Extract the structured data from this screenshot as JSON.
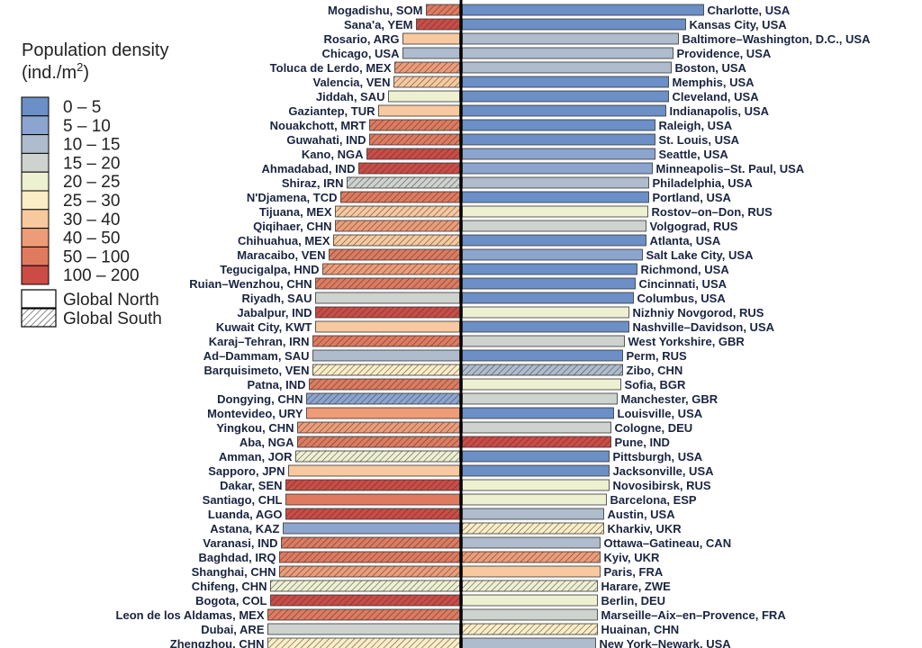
{
  "chart_data": {
    "type": "bar",
    "orientation": "horizontal-diverging",
    "legend": {
      "title_line1": "Population density",
      "title_line2_prefix": "(ind./m",
      "title_line2_sup": "2",
      "title_line2_suffix": ")",
      "bins": [
        {
          "label": "0 – 5",
          "color": "#6b8fc6"
        },
        {
          "label": "5 – 10",
          "color": "#8ba5cf"
        },
        {
          "label": "10 – 15",
          "color": "#aebccd"
        },
        {
          "label": "15 – 20",
          "color": "#cfd3cf"
        },
        {
          "label": "20 – 25",
          "color": "#eef0d2"
        },
        {
          "label": "25 – 30",
          "color": "#fbedc6"
        },
        {
          "label": "30 – 40",
          "color": "#f8c99e"
        },
        {
          "label": "40 – 50",
          "color": "#ee9c78"
        },
        {
          "label": "50 – 100",
          "color": "#e07a5f"
        },
        {
          "label": "100 – 200",
          "color": "#cd4b45"
        }
      ],
      "region_keys": [
        {
          "label": "Global North",
          "pattern": "solid"
        },
        {
          "label": "Global South",
          "pattern": "hatched"
        }
      ]
    },
    "left_series": [
      {
        "city": "Mogadishu, SOM",
        "bar": 37,
        "bin": 8,
        "south": true
      },
      {
        "city": "Sana'a, YEM",
        "bar": 48,
        "bin": 9,
        "south": true
      },
      {
        "city": "Rosario, ARG",
        "bar": 63,
        "bin": 6,
        "south": false
      },
      {
        "city": "Chicago, USA",
        "bar": 63,
        "bin": 2,
        "south": false
      },
      {
        "city": "Toluca de Lerdo, MEX",
        "bar": 72,
        "bin": 7,
        "south": true
      },
      {
        "city": "Valencia, VEN",
        "bar": 73,
        "bin": 6,
        "south": true
      },
      {
        "city": "Jiddah, SAU",
        "bar": 79,
        "bin": 4,
        "south": false
      },
      {
        "city": "Gaziantep, TUR",
        "bar": 90,
        "bin": 6,
        "south": false
      },
      {
        "city": "Nouakchott, MRT",
        "bar": 100,
        "bin": 8,
        "south": true
      },
      {
        "city": "Guwahati, IND",
        "bar": 100,
        "bin": 8,
        "south": true
      },
      {
        "city": "Kano, NGA",
        "bar": 103,
        "bin": 9,
        "south": true
      },
      {
        "city": "Ahmadabad, IND",
        "bar": 112,
        "bin": 9,
        "south": true
      },
      {
        "city": "Shiraz, IRN",
        "bar": 125,
        "bin": 3,
        "south": true
      },
      {
        "city": "N'Djamena, TCD",
        "bar": 132,
        "bin": 8,
        "south": true
      },
      {
        "city": "Tijuana, MEX",
        "bar": 138,
        "bin": 6,
        "south": true
      },
      {
        "city": "Qiqihaer, CHN",
        "bar": 138,
        "bin": 7,
        "south": true
      },
      {
        "city": "Chihuahua, MEX",
        "bar": 140,
        "bin": 6,
        "south": true
      },
      {
        "city": "Maracaibo, VEN",
        "bar": 145,
        "bin": 8,
        "south": true
      },
      {
        "city": "Tegucigalpa, HND",
        "bar": 152,
        "bin": 7,
        "south": true
      },
      {
        "city": "Ruian–Wenzhou, CHN",
        "bar": 160,
        "bin": 8,
        "south": true
      },
      {
        "city": "Riyadh, SAU",
        "bar": 160,
        "bin": 3,
        "south": false
      },
      {
        "city": "Jabalpur, IND",
        "bar": 160,
        "bin": 9,
        "south": true
      },
      {
        "city": "Kuwait City, KWT",
        "bar": 160,
        "bin": 6,
        "south": false
      },
      {
        "city": "Karaj–Tehran, IRN",
        "bar": 163,
        "bin": 8,
        "south": true
      },
      {
        "city": "Ad–Dammam, SAU",
        "bar": 163,
        "bin": 2,
        "south": false
      },
      {
        "city": "Barquisimeto, VEN",
        "bar": 163,
        "bin": 5,
        "south": true
      },
      {
        "city": "Patna, IND",
        "bar": 167,
        "bin": 8,
        "south": true
      },
      {
        "city": "Dongying, CHN",
        "bar": 170,
        "bin": 1,
        "south": true
      },
      {
        "city": "Montevideo, URY",
        "bar": 170,
        "bin": 7,
        "south": false
      },
      {
        "city": "Yingkou, CHN",
        "bar": 180,
        "bin": 7,
        "south": true
      },
      {
        "city": "Aba, NGA",
        "bar": 180,
        "bin": 8,
        "south": true
      },
      {
        "city": "Amman, JOR",
        "bar": 182,
        "bin": 4,
        "south": true
      },
      {
        "city": "Sapporo, JPN",
        "bar": 190,
        "bin": 6,
        "south": false
      },
      {
        "city": "Dakar, SEN",
        "bar": 193,
        "bin": 9,
        "south": true
      },
      {
        "city": "Santiago, CHL",
        "bar": 193,
        "bin": 8,
        "south": false
      },
      {
        "city": "Luanda, AGO",
        "bar": 193,
        "bin": 9,
        "south": true
      },
      {
        "city": "Astana, KAZ",
        "bar": 196,
        "bin": 1,
        "south": false
      },
      {
        "city": "Varanasi, IND",
        "bar": 198,
        "bin": 8,
        "south": true
      },
      {
        "city": "Baghdad, IRQ",
        "bar": 200,
        "bin": 8,
        "south": true
      },
      {
        "city": "Shanghai, CHN",
        "bar": 200,
        "bin": 7,
        "south": true
      },
      {
        "city": "Chifeng, CHN",
        "bar": 210,
        "bin": 4,
        "south": true
      },
      {
        "city": "Bogota, COL",
        "bar": 210,
        "bin": 9,
        "south": true
      },
      {
        "city": "Leon de los Aldamas, MEX",
        "bar": 213,
        "bin": 8,
        "south": true
      },
      {
        "city": "Dubai, ARE",
        "bar": 213,
        "bin": 3,
        "south": false
      },
      {
        "city": "Zhengzhou, CHN",
        "bar": 213,
        "bin": 5,
        "south": true
      }
    ],
    "right_series": [
      {
        "city": "Charlotte, USA",
        "bar": 268,
        "bin": 0,
        "south": false
      },
      {
        "city": "Kansas City, USA",
        "bar": 248,
        "bin": 0,
        "south": false
      },
      {
        "city": "Baltimore–Washington, D.C., USA",
        "bar": 240,
        "bin": 2,
        "south": false
      },
      {
        "city": "Providence, USA",
        "bar": 234,
        "bin": 2,
        "south": false
      },
      {
        "city": "Boston, USA",
        "bar": 232,
        "bin": 2,
        "south": false
      },
      {
        "city": "Memphis, USA",
        "bar": 229,
        "bin": 0,
        "south": false
      },
      {
        "city": "Cleveland, USA",
        "bar": 229,
        "bin": 0,
        "south": false
      },
      {
        "city": "Indianapolis, USA",
        "bar": 226,
        "bin": 0,
        "south": false
      },
      {
        "city": "Raleigh, USA",
        "bar": 214,
        "bin": 0,
        "south": false
      },
      {
        "city": "St. Louis, USA",
        "bar": 214,
        "bin": 0,
        "south": false
      },
      {
        "city": "Seattle, USA",
        "bar": 214,
        "bin": 1,
        "south": false
      },
      {
        "city": "Minneapolis–St. Paul, USA",
        "bar": 211,
        "bin": 1,
        "south": false
      },
      {
        "city": "Philadelphia, USA",
        "bar": 207,
        "bin": 2,
        "south": false
      },
      {
        "city": "Portland, USA",
        "bar": 207,
        "bin": 0,
        "south": false
      },
      {
        "city": "Rostov–on–Don, RUS",
        "bar": 206,
        "bin": 4,
        "south": false
      },
      {
        "city": "Volgograd, RUS",
        "bar": 204,
        "bin": 3,
        "south": false
      },
      {
        "city": "Atlanta, USA",
        "bar": 204,
        "bin": 0,
        "south": false
      },
      {
        "city": "Salt Lake City, USA",
        "bar": 200,
        "bin": 1,
        "south": false
      },
      {
        "city": "Richmond, USA",
        "bar": 194,
        "bin": 0,
        "south": false
      },
      {
        "city": "Cincinnati, USA",
        "bar": 192,
        "bin": 0,
        "south": false
      },
      {
        "city": "Columbus, USA",
        "bar": 190,
        "bin": 0,
        "south": false
      },
      {
        "city": "Nizhniy Novgorod, RUS",
        "bar": 185,
        "bin": 4,
        "south": false
      },
      {
        "city": "Nashville–Davidson, USA",
        "bar": 185,
        "bin": 0,
        "south": false
      },
      {
        "city": "West Yorkshire, GBR",
        "bar": 180,
        "bin": 3,
        "south": false
      },
      {
        "city": "Perm, RUS",
        "bar": 178,
        "bin": 0,
        "south": false
      },
      {
        "city": "Zibo, CHN",
        "bar": 178,
        "bin": 2,
        "south": true
      },
      {
        "city": "Sofia, BGR",
        "bar": 176,
        "bin": 4,
        "south": false
      },
      {
        "city": "Manchester, GBR",
        "bar": 172,
        "bin": 3,
        "south": false
      },
      {
        "city": "Louisville, USA",
        "bar": 168,
        "bin": 0,
        "south": false
      },
      {
        "city": "Cologne, DEU",
        "bar": 165,
        "bin": 3,
        "south": false
      },
      {
        "city": "Pune, IND",
        "bar": 165,
        "bin": 9,
        "south": true
      },
      {
        "city": "Pittsburgh, USA",
        "bar": 163,
        "bin": 0,
        "south": false
      },
      {
        "city": "Jacksonville, USA",
        "bar": 163,
        "bin": 0,
        "south": false
      },
      {
        "city": "Novosibirsk, RUS",
        "bar": 163,
        "bin": 4,
        "south": false
      },
      {
        "city": "Barcelona, ESP",
        "bar": 160,
        "bin": 4,
        "south": false
      },
      {
        "city": "Austin, USA",
        "bar": 157,
        "bin": 2,
        "south": false
      },
      {
        "city": "Kharkiv, UKR",
        "bar": 157,
        "bin": 5,
        "south": true
      },
      {
        "city": "Ottawa–Gatineau, CAN",
        "bar": 153,
        "bin": 2,
        "south": false
      },
      {
        "city": "Kyiv, UKR",
        "bar": 153,
        "bin": 7,
        "south": true
      },
      {
        "city": "Paris, FRA",
        "bar": 153,
        "bin": 6,
        "south": false
      },
      {
        "city": "Harare, ZWE",
        "bar": 150,
        "bin": 4,
        "south": true
      },
      {
        "city": "Berlin, DEU",
        "bar": 150,
        "bin": 4,
        "south": false
      },
      {
        "city": "Marseille–Aix–en–Provence, FRA",
        "bar": 150,
        "bin": 3,
        "south": false
      },
      {
        "city": "Huainan, CHN",
        "bar": 150,
        "bin": 5,
        "south": true
      },
      {
        "city": "New York–Newark, USA",
        "bar": 148,
        "bin": 2,
        "south": false
      }
    ]
  }
}
